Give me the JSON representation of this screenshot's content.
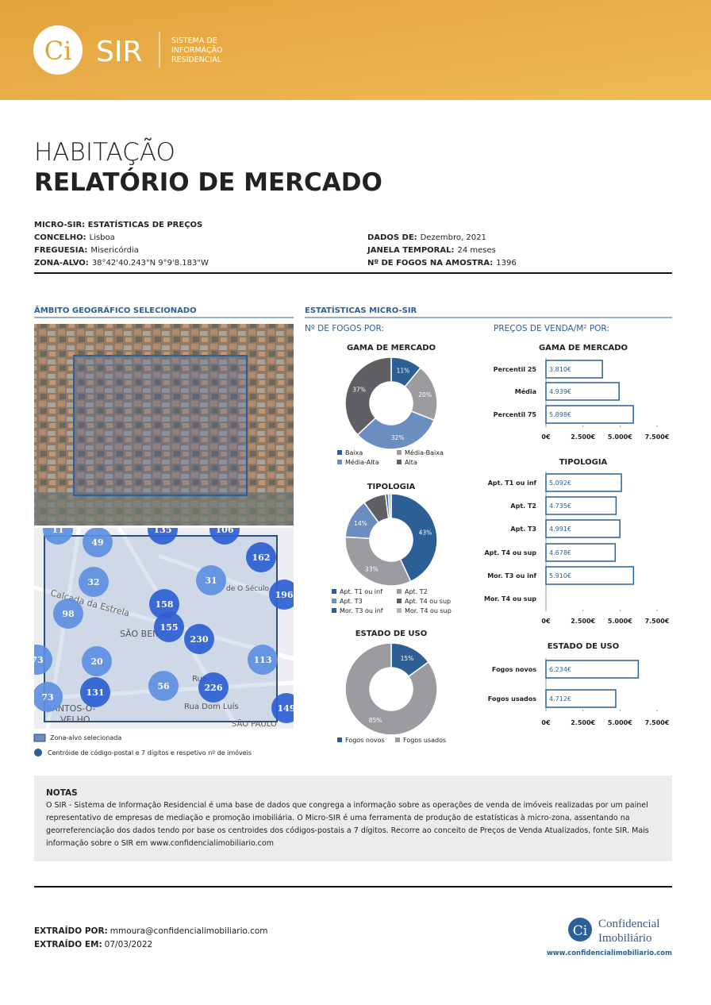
{
  "header": {
    "logo": "Ci",
    "brand": "SIR",
    "tagline": [
      "SISTEMA DE",
      "INFORMAÇÃO",
      "RESIDENCIAL"
    ]
  },
  "title": {
    "line1": "HABITAÇÃO",
    "line2": "RELATÓRIO DE MERCADO"
  },
  "info": {
    "heading": "MICRO-SIR: ESTATÍSTICAS DE PREÇOS",
    "left": [
      {
        "label": "CONCELHO:",
        "value": "Lisboa"
      },
      {
        "label": "FREGUESIA:",
        "value": "Misericórdia"
      },
      {
        "label": "ZONA-ALVO:",
        "value": "38°42'40.243\"N 9°9'8.183\"W"
      }
    ],
    "right": [
      {
        "label": "DADOS DE:",
        "value": "Dezembro, 2021"
      },
      {
        "label": "JANELA TEMPORAL:",
        "value": "24 meses"
      },
      {
        "label": "Nº DE FOGOS NA AMOSTRA:",
        "value": "1396"
      }
    ]
  },
  "sections": {
    "map": "ÂMBITO GEOGRÁFICO SELECIONADO",
    "stats": "ESTATÍSTICAS MICRO-SIR",
    "counts": "Nº DE FOGOS POR:",
    "prices": "PREÇOS DE VENDA/M² POR:"
  },
  "map": {
    "clusters": [
      "11",
      "49",
      "135",
      "106",
      "162",
      "32",
      "31",
      "196",
      "98",
      "158",
      "155",
      "230",
      "113",
      "73",
      "20",
      "131",
      "56",
      "226",
      "149",
      "73"
    ],
    "streets": [
      "Calçada da Estrela",
      "SÃO BEN",
      "SANTOS-O-",
      "VELHO",
      "SÃO PAULO",
      "Rua Dom Luís",
      "Rua",
      "de O Século"
    ],
    "legend": [
      "Zona-alvo selecionada",
      "Centróide de código-postal e 7 dígitos e respetivo nº de imóveis"
    ]
  },
  "chart_data": [
    {
      "type": "donut",
      "title": "GAMA DE MERCADO",
      "categories": [
        "Baixa",
        "Média-Baixa",
        "Média-Alta",
        "Alta"
      ],
      "values": [
        11,
        20,
        32,
        37
      ],
      "value_labels": [
        "11%",
        "20%",
        "32%",
        "37%"
      ],
      "colors": [
        "#2b5f96",
        "#9b9ba0",
        "#6b8dc0",
        "#606064"
      ]
    },
    {
      "type": "donut",
      "title": "TIPOLOGIA",
      "categories": [
        "Apt. T1 ou inf",
        "Apt. T2",
        "Apt. T3",
        "Apt. T4 ou sup",
        "Mor. T3 ou inf",
        "Mor. T4 ou sup"
      ],
      "values": [
        43,
        33,
        14,
        8,
        1,
        1
      ],
      "value_labels": [
        "43%",
        "33%",
        "14%",
        null,
        null,
        null
      ],
      "colors": [
        "#2b5f96",
        "#9b9ba0",
        "#6b8dc0",
        "#606064",
        "#2b5f96",
        "#b4b4b8"
      ]
    },
    {
      "type": "donut",
      "title": "ESTADO DE USO",
      "categories": [
        "Fogos novos",
        "Fogos usados"
      ],
      "values": [
        15,
        85
      ],
      "value_labels": [
        "15%",
        "85%"
      ],
      "colors": [
        "#2b5f96",
        "#9b9ba0"
      ]
    },
    {
      "type": "bar",
      "orientation": "horizontal",
      "title": "GAMA DE MERCADO",
      "categories": [
        "Percentil 25",
        "Média",
        "Percentil 75"
      ],
      "values": [
        3810,
        4939,
        5898
      ],
      "value_labels": [
        "3.810€",
        "4.939€",
        "5.898€"
      ],
      "color": "#ffffff",
      "edgecolor": "#2b5f96",
      "xlim": [
        0,
        7500
      ],
      "xticks": [
        {
          "value": 0,
          "label": "0€"
        },
        {
          "value": 2500,
          "label": "2.500€"
        },
        {
          "value": 5000,
          "label": "5.000€"
        },
        {
          "value": 7500,
          "label": "7.500€"
        }
      ]
    },
    {
      "type": "bar",
      "orientation": "horizontal",
      "title": "TIPOLOGIA",
      "categories": [
        "Apt. T1 ou inf",
        "Apt. T2",
        "Apt. T3",
        "Apt. T4 ou sup",
        "Mor. T3 ou inf",
        "Mor. T4 ou sup"
      ],
      "values": [
        5092,
        4735,
        4991,
        4678,
        5910,
        null
      ],
      "value_labels": [
        "5.092€",
        "4.735€",
        "4.991€",
        "4.678€",
        "5.910€",
        null
      ],
      "color": "#ffffff",
      "edgecolor": "#2b5f96",
      "xlim": [
        0,
        7500
      ],
      "xticks": [
        {
          "value": 0,
          "label": "0€"
        },
        {
          "value": 2500,
          "label": "2.500€"
        },
        {
          "value": 5000,
          "label": "5.000€"
        },
        {
          "value": 7500,
          "label": "7.500€"
        }
      ]
    },
    {
      "type": "bar",
      "orientation": "horizontal",
      "title": "ESTADO DE USO",
      "categories": [
        "Fogos novos",
        "Fogos usados"
      ],
      "values": [
        6234,
        4712
      ],
      "value_labels": [
        "6.234€",
        "4.712€"
      ],
      "color": "#ffffff",
      "edgecolor": "#2b5f96",
      "xlim": [
        0,
        7500
      ],
      "xticks": [
        {
          "value": 0,
          "label": "0€"
        },
        {
          "value": 2500,
          "label": "2.500€"
        },
        {
          "value": 5000,
          "label": "5.000€"
        },
        {
          "value": 7500,
          "label": "7.500€"
        }
      ]
    }
  ],
  "notes": {
    "title": "NOTAS",
    "text": "O SIR - Sistema de Informação Residencial é uma base de dados que congrega a informação sobre as operações de venda de imóveis realizadas por um painel representativo de empresas de mediação e promoção imobiliária. O Micro-SIR é uma ferramenta de produção de estatísticas à micro-zona, assentando na georreferenciação dos dados tendo por base os centroides dos códigos-postais a 7 dígitos. Recorre ao conceito de Preços de Venda Atualizados, fonte SIR. Mais informação sobre o SIR em www.confidencialimobiliario.com"
  },
  "footer": {
    "extracted_by_label": "EXTRAÍDO POR:",
    "extracted_by": "mmoura@confidencialimobiliario.com",
    "extracted_on_label": "EXTRAÍDO EM:",
    "extracted_on": "07/03/2022",
    "logo": "Ci",
    "brand1": "Confidencial",
    "brand2": "Imobiliário",
    "url": "www.confidencialimobiliario.com"
  }
}
